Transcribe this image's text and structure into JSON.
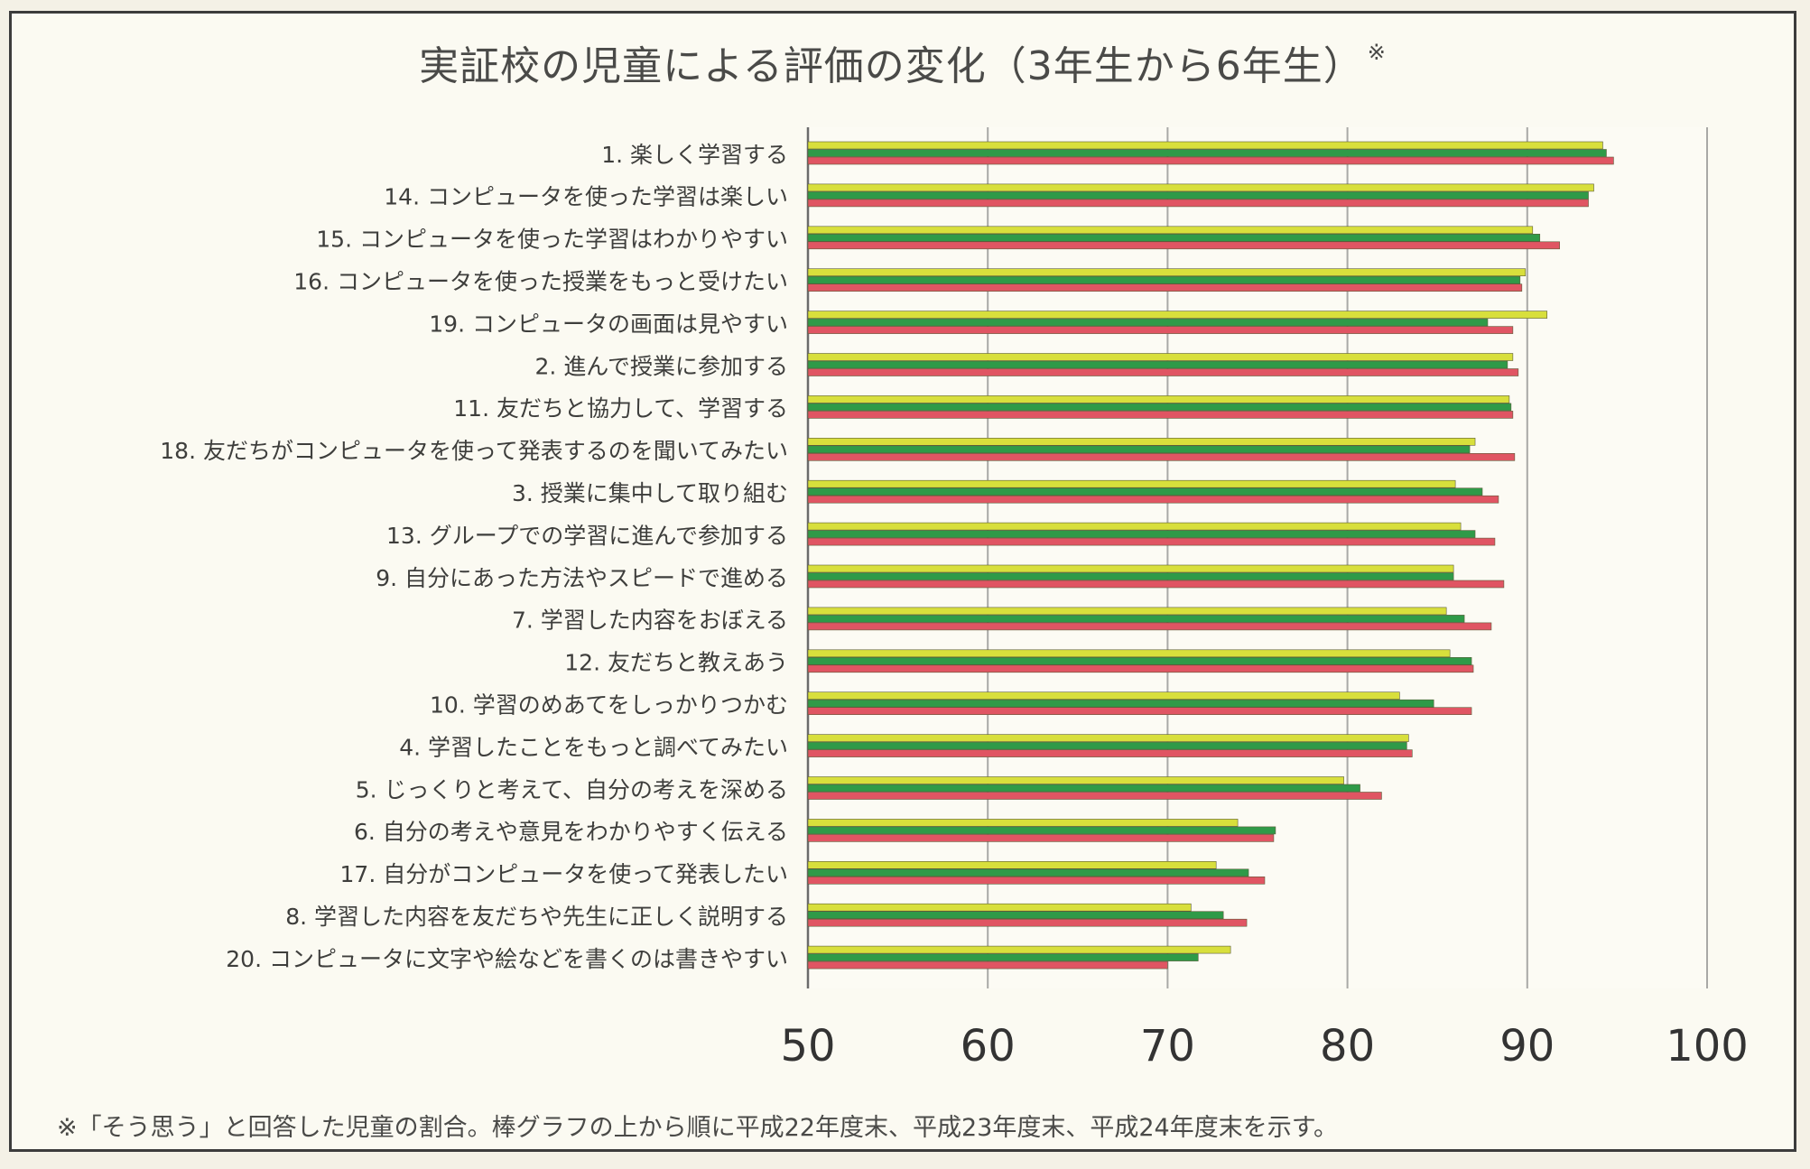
{
  "chart_data": {
    "type": "bar",
    "orientation": "horizontal",
    "title": "実証校の児童による評価の変化（3年生から6年生）",
    "title_mark": "※",
    "xlim": [
      50,
      100
    ],
    "xticks": [
      50,
      60,
      70,
      80,
      90,
      100
    ],
    "grid": "vertical gridlines at each tick",
    "categories": [
      "1. 楽しく学習する",
      "14. コンピュータを使った学習は楽しい",
      "15. コンピュータを使った学習はわかりやすい",
      "16. コンピュータを使った授業をもっと受けたい",
      "19. コンピュータの画面は見やすい",
      "2. 進んで授業に参加する",
      "11. 友だちと協力して、学習する",
      "18. 友だちがコンピュータを使って発表するのを聞いてみたい",
      "3. 授業に集中して取り組む",
      "13. グループでの学習に進んで参加する",
      "9. 自分にあった方法やスピードで進める",
      "7. 学習した内容をおぼえる",
      "12. 友だちと教えあう",
      "10. 学習のめあてをしっかりつかむ",
      "4. 学習したことをもっと調べてみたい",
      "5. じっくりと考えて、自分の考えを深める",
      "6. 自分の考えや意見をわかりやすく伝える",
      "17. 自分がコンピュータを使って発表したい",
      "8. 学習した内容を友だちや先生に正しく説明する",
      "20. コンピュータに文字や絵などを書くのは書きやすい"
    ],
    "series": [
      {
        "color": "#d8df3c",
        "values": [
          94.2,
          93.7,
          90.3,
          89.9,
          91.1,
          89.2,
          89.0,
          87.1,
          86.0,
          86.3,
          85.9,
          85.5,
          85.7,
          82.9,
          83.4,
          79.8,
          73.9,
          72.7,
          71.3,
          73.5
        ]
      },
      {
        "color": "#2f9a48",
        "values": [
          94.4,
          93.4,
          90.7,
          89.6,
          87.8,
          88.9,
          89.1,
          86.8,
          87.5,
          87.1,
          85.9,
          86.5,
          86.9,
          84.8,
          83.3,
          80.7,
          76.0,
          74.5,
          73.1,
          71.7
        ]
      },
      {
        "color": "#e05563",
        "values": [
          94.8,
          93.4,
          91.8,
          89.7,
          89.2,
          89.5,
          89.2,
          89.3,
          88.4,
          88.2,
          88.7,
          88.0,
          87.0,
          86.9,
          83.6,
          81.9,
          75.9,
          75.4,
          74.4,
          70.0
        ]
      }
    ]
  },
  "footnote": "※「そう思う」と回答した児童の割合。棒グラフの上から順に平成22年度末、平成23年度末、平成24年度末を示す。"
}
